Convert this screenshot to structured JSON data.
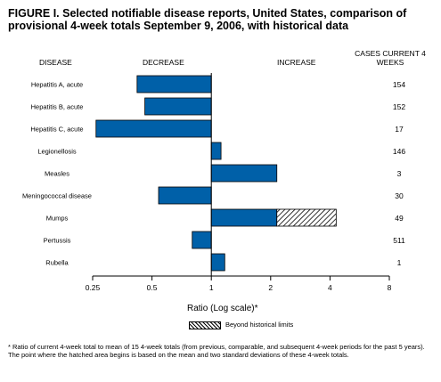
{
  "title": "FIGURE I. Selected notifiable disease reports, United States, comparison of provisional 4-week totals September 9, 2006, with historical data",
  "headers": {
    "disease": "DISEASE",
    "decrease": "DECREASE",
    "increase": "INCREASE",
    "cases": "CASES CURRENT 4 WEEKS"
  },
  "chart_data": {
    "type": "bar",
    "orientation": "horizontal",
    "xscale": "log2",
    "xlim": [
      0.25,
      8
    ],
    "baseline": 1,
    "xlabel": "Ratio (Log scale)*",
    "xticks": [
      {
        "value": 0.25,
        "label": "0.25"
      },
      {
        "value": 0.5,
        "label": "0.5"
      },
      {
        "value": 1,
        "label": "1"
      },
      {
        "value": 2,
        "label": "2"
      },
      {
        "value": 4,
        "label": "4"
      },
      {
        "value": 8,
        "label": "8"
      }
    ],
    "categories": [
      "Hepatitis A, acute",
      "Hepatitis B, acute",
      "Hepatitis C, acute",
      "Legionellosis",
      "Measles",
      "Meningococcal disease",
      "Mumps",
      "Pertussis",
      "Rubella"
    ],
    "values": [
      0.42,
      0.46,
      0.26,
      1.12,
      2.15,
      0.54,
      4.3,
      0.8,
      1.17
    ],
    "beyond_limits_start": [
      null,
      null,
      null,
      null,
      null,
      null,
      2.15,
      null,
      null
    ],
    "cases": [
      "154",
      "152",
      "17",
      "146",
      "3",
      "30",
      "49",
      "511",
      "1"
    ],
    "legend": "Beyond historical limits",
    "colors": {
      "bar": "#0060a8",
      "hatch": "#000000"
    }
  },
  "footnote": "* Ratio of current 4-week total to mean of 15 4-week totals (from previous, comparable, and subsequent 4-week periods for the past 5 years). The point where the hatched area begins is based on the mean and two standard deviations of these 4-week totals."
}
